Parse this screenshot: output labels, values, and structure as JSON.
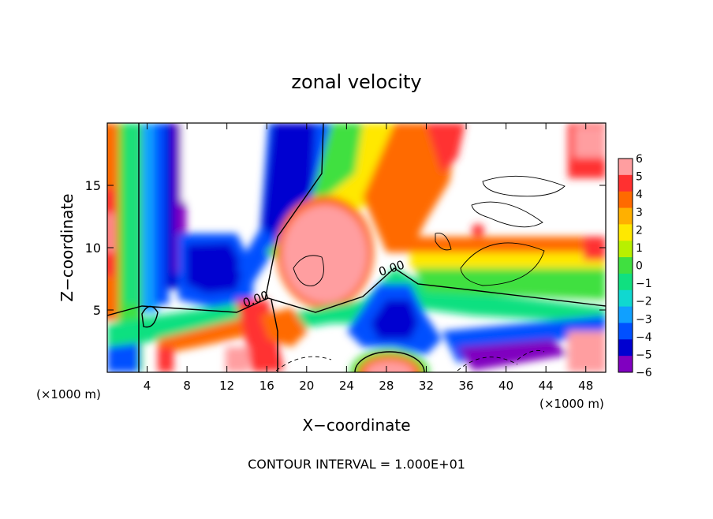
{
  "chart_data": {
    "type": "heatmap",
    "title": "zonal velocity",
    "xlabel": "X−coordinate",
    "ylabel": "Z−coordinate",
    "x_unit_left": "(×1000 m)",
    "x_unit_right": "(×1000 m)",
    "footer": "CONTOUR INTERVAL = 1.000E+01",
    "xlim": [
      0,
      50
    ],
    "ylim": [
      0,
      20
    ],
    "x_ticks": [
      4,
      8,
      12,
      16,
      20,
      24,
      28,
      32,
      36,
      40,
      44,
      48
    ],
    "x_tick_labels": [
      "4",
      "8",
      "12",
      "16",
      "20",
      "24",
      "28",
      "32",
      "36",
      "40",
      "44",
      "48"
    ],
    "y_ticks": [
      5,
      10,
      15
    ],
    "y_tick_labels": [
      "5",
      "10",
      "15"
    ],
    "colorbar": {
      "levels": [
        6,
        5,
        4,
        3,
        2,
        1,
        0,
        -1,
        -2,
        -3,
        -4,
        -5,
        -6
      ],
      "labels": [
        "6",
        "5",
        "4",
        "3",
        "2",
        "1",
        "0",
        "−1",
        "−2",
        "−3",
        "−4",
        "−5",
        "−6"
      ],
      "colors": [
        "#ff9ea0",
        "#ff3030",
        "#ff6a00",
        "#ffb000",
        "#ffe800",
        "#b8f000",
        "#40e040",
        "#10e080",
        "#10d8d0",
        "#10a0ff",
        "#0050ff",
        "#0000d0",
        "#8000c0"
      ]
    },
    "contour_labels": [
      "0.00",
      "0.00"
    ],
    "grid": false
  }
}
